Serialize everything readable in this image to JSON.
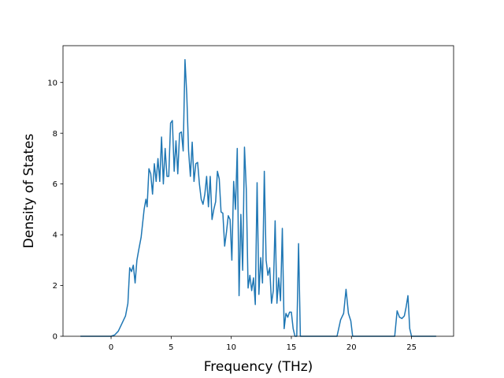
{
  "chart_data": {
    "type": "line",
    "title": "",
    "xlabel": "Frequency (THz)",
    "ylabel": "Density of States",
    "xlim": [
      -4.0,
      28.5
    ],
    "ylim": [
      0,
      11.45
    ],
    "grid": false,
    "legend": "none",
    "xticks": [
      0,
      5,
      10,
      15,
      20,
      25
    ],
    "yticks": [
      0,
      2,
      4,
      6,
      8,
      10
    ],
    "series": [
      {
        "color": "#1f77b4",
        "x": [
          -2.5,
          -1.0,
          0.0,
          0.3,
          0.6,
          0.9,
          1.2,
          1.4,
          1.55,
          1.7,
          1.85,
          2.0,
          2.15,
          2.3,
          2.5,
          2.75,
          2.9,
          3.0,
          3.15,
          3.3,
          3.45,
          3.6,
          3.75,
          3.9,
          4.05,
          4.2,
          4.35,
          4.5,
          4.65,
          4.8,
          4.95,
          5.1,
          5.25,
          5.4,
          5.55,
          5.7,
          5.85,
          6.0,
          6.15,
          6.3,
          6.45,
          6.6,
          6.75,
          6.9,
          7.05,
          7.2,
          7.35,
          7.5,
          7.65,
          7.8,
          7.95,
          8.1,
          8.25,
          8.4,
          8.55,
          8.7,
          8.85,
          9.0,
          9.15,
          9.3,
          9.45,
          9.6,
          9.75,
          9.9,
          10.05,
          10.2,
          10.35,
          10.5,
          10.65,
          10.8,
          10.95,
          11.1,
          11.25,
          11.4,
          11.55,
          11.7,
          11.85,
          12.0,
          12.15,
          12.3,
          12.45,
          12.6,
          12.75,
          12.9,
          13.05,
          13.2,
          13.35,
          13.5,
          13.65,
          13.8,
          13.95,
          14.1,
          14.25,
          14.4,
          14.55,
          14.7,
          14.85,
          15.0,
          15.15,
          15.3,
          15.45,
          15.6,
          15.75,
          16.0,
          17.0,
          18.0,
          18.8,
          19.1,
          19.35,
          19.55,
          19.75,
          19.95,
          20.1,
          21.0,
          23.0,
          23.6,
          23.8,
          24.0,
          24.2,
          24.4,
          24.55,
          24.7,
          24.85,
          25.0,
          25.2,
          27.0
        ],
        "y": [
          0,
          0,
          0,
          0.05,
          0.2,
          0.5,
          0.8,
          1.3,
          2.7,
          2.55,
          2.8,
          2.1,
          3.0,
          3.4,
          3.9,
          5.0,
          5.4,
          5.1,
          6.6,
          6.4,
          5.6,
          6.8,
          6.1,
          7.0,
          6.1,
          7.85,
          6.0,
          7.4,
          6.3,
          6.3,
          8.4,
          8.5,
          6.5,
          7.7,
          6.4,
          8.0,
          8.05,
          7.3,
          10.9,
          9.5,
          7.3,
          6.3,
          7.65,
          6.1,
          6.8,
          6.85,
          6.0,
          5.4,
          5.2,
          5.6,
          6.3,
          5.1,
          6.3,
          4.6,
          5.0,
          5.3,
          6.5,
          6.2,
          4.9,
          4.85,
          3.55,
          4.1,
          4.75,
          4.6,
          3.0,
          6.1,
          5.0,
          7.4,
          1.6,
          4.8,
          2.6,
          7.45,
          5.8,
          1.9,
          2.4,
          1.8,
          2.3,
          1.25,
          6.05,
          1.65,
          3.1,
          2.1,
          6.5,
          3.0,
          2.4,
          2.7,
          1.3,
          1.8,
          4.55,
          1.3,
          2.3,
          1.4,
          4.25,
          0.3,
          0.9,
          0.75,
          0.95,
          0.95,
          0.3,
          0,
          0,
          3.65,
          0,
          0,
          0,
          0,
          0,
          0.65,
          0.9,
          1.85,
          0.9,
          0.6,
          0,
          0,
          0,
          0,
          1.0,
          0.75,
          0.7,
          0.8,
          1.15,
          1.6,
          0.3,
          0,
          0,
          0
        ]
      }
    ]
  }
}
